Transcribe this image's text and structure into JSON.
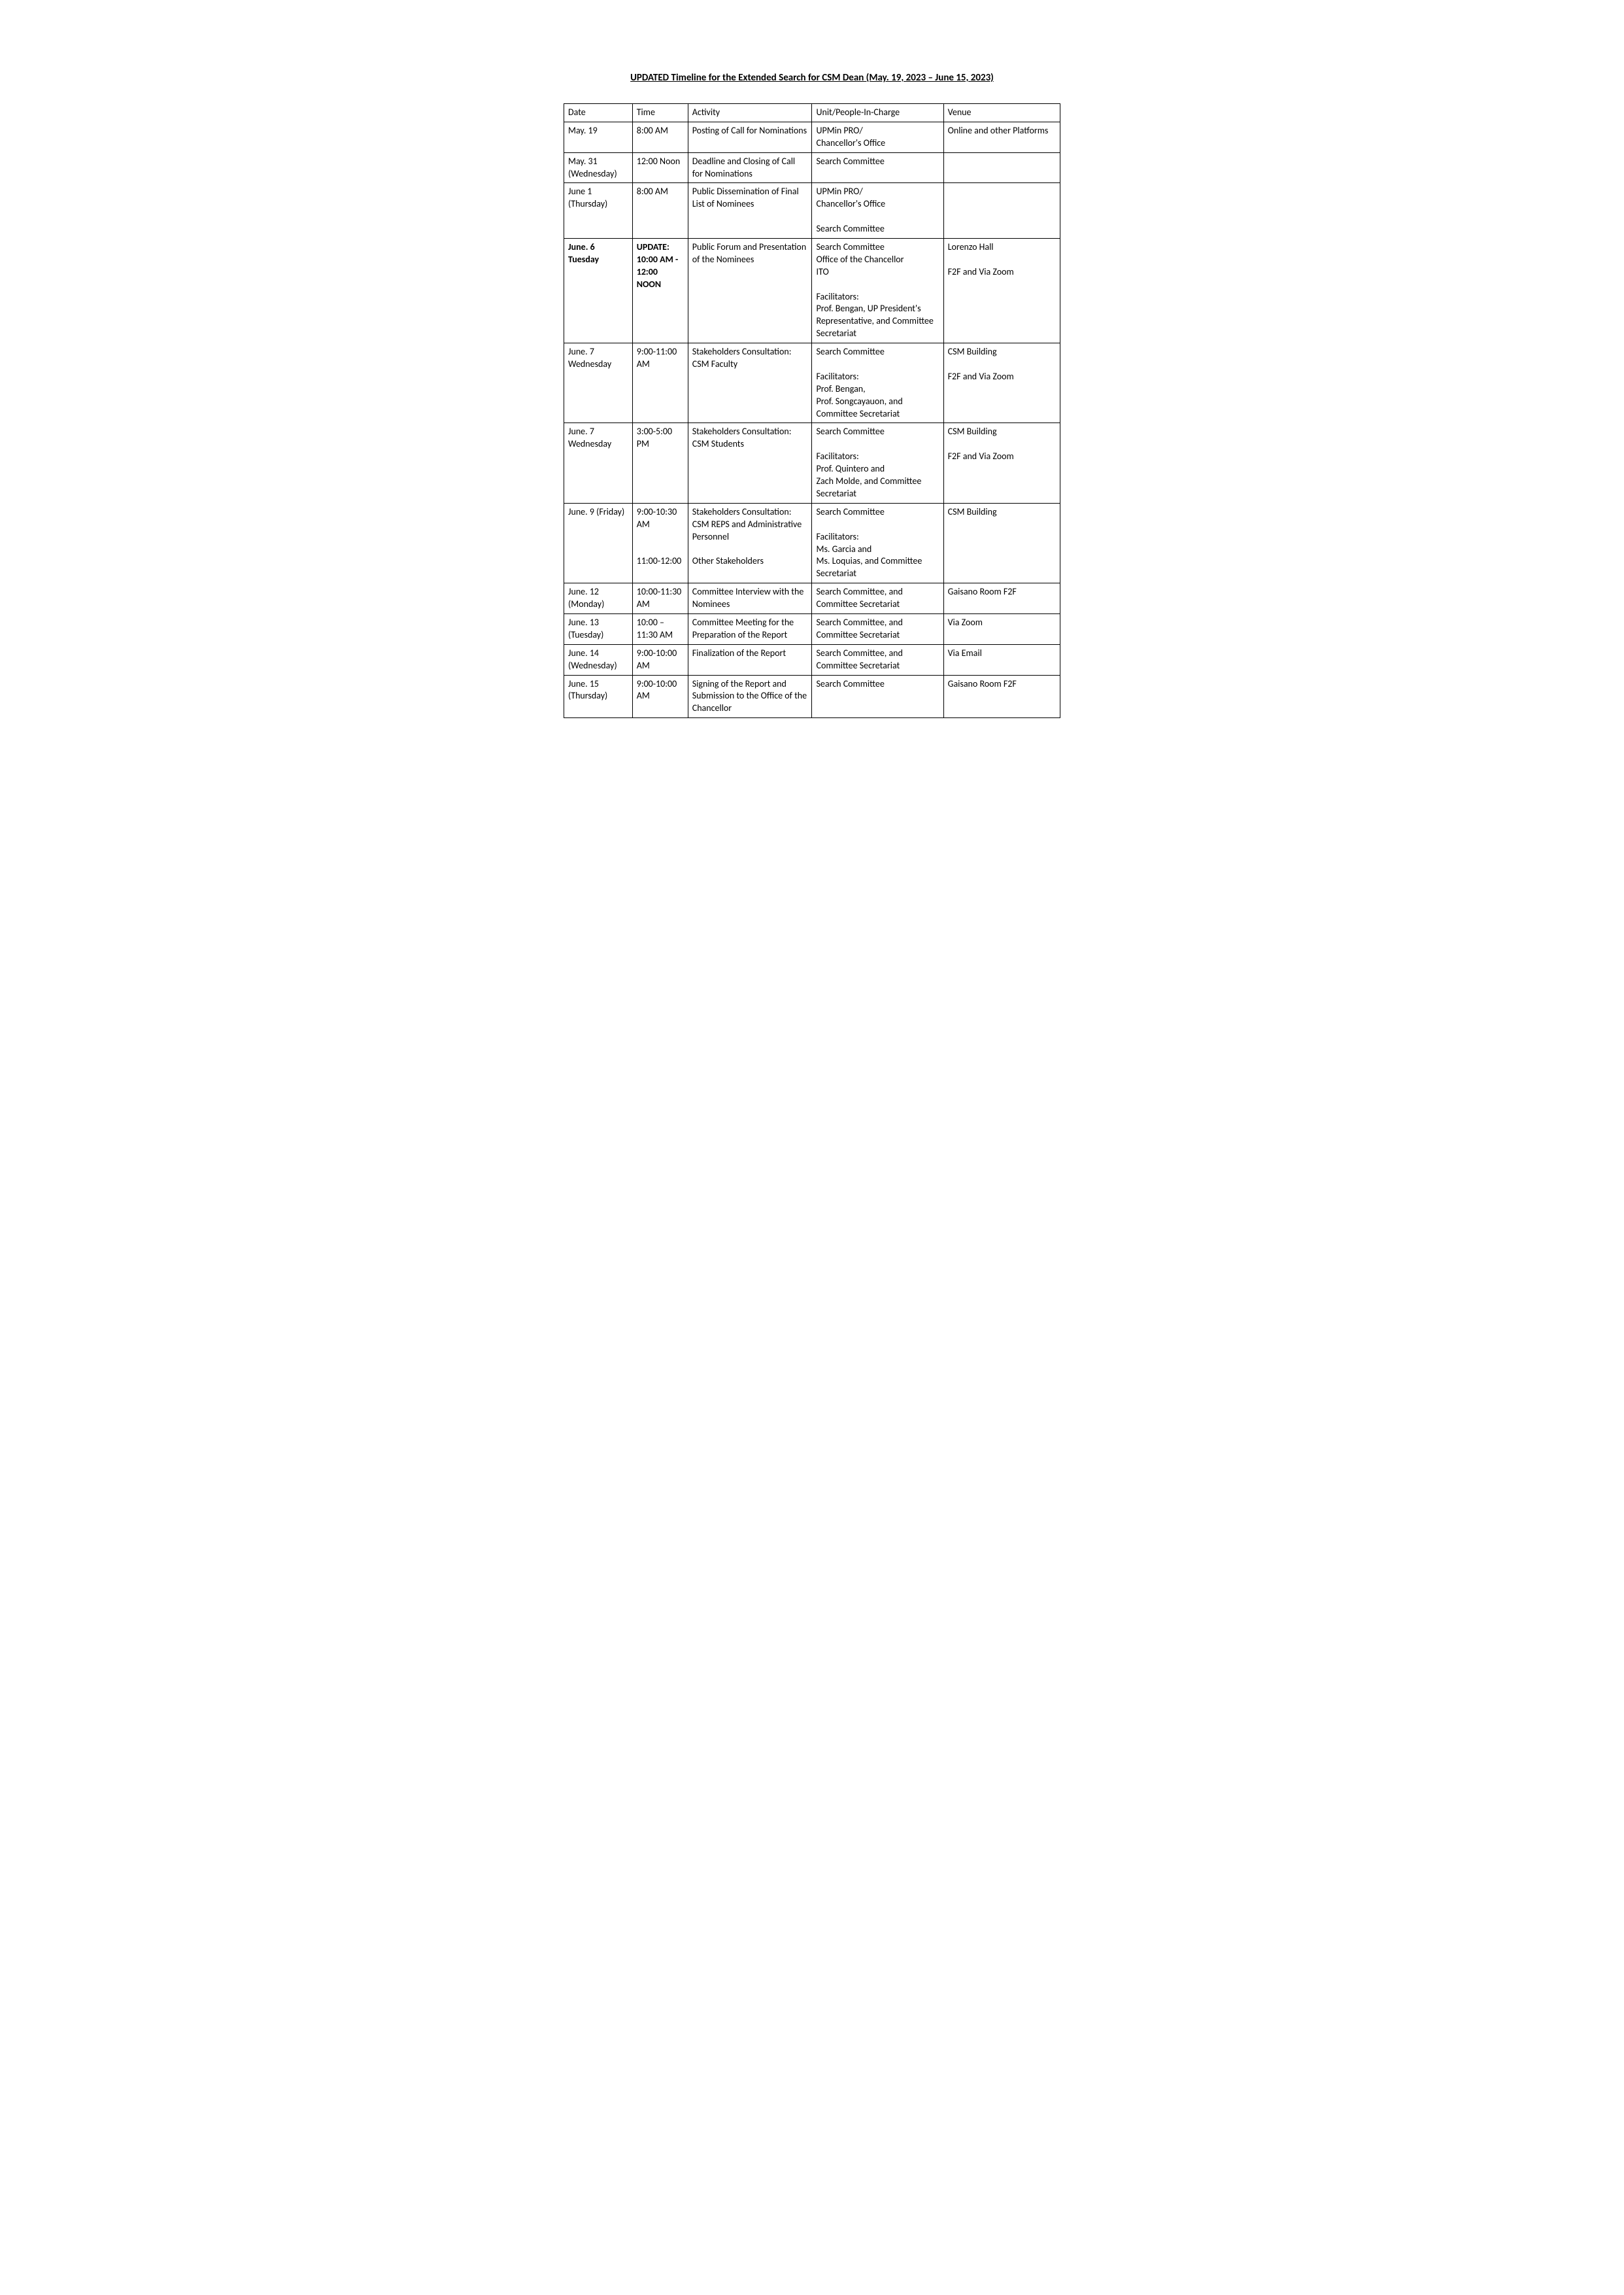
{
  "doc": {
    "title": "UPDATED Timeline for the Extended Search for CSM Dean (May. 19, 2023 – June 15, 2023)",
    "headers": {
      "date": "Date",
      "time": "Time",
      "activity": "Activity",
      "unit": "Unit/People-In-Charge",
      "venue": "Venue"
    },
    "rows": [
      {
        "date": "May. 19",
        "time": "8:00 AM",
        "activity": "Posting of Call for Nominations",
        "unit": "UPMin PRO/\nChancellor's Office",
        "venue": "Online  and other Platforms"
      },
      {
        "date": "May. 31 (Wednesday)",
        "time": "12:00 Noon",
        "activity": "Deadline and Closing of Call for Nominations",
        "unit": "Search Committee",
        "venue": ""
      },
      {
        "date": "June 1 (Thursday)",
        "time": "8:00 AM",
        "activity": "Public Dissemination of Final List of Nominees",
        "unit": "UPMin PRO/\nChancellor's Office\n\nSearch Committee",
        "venue": ""
      },
      {
        "date": "June. 6\nTuesday",
        "date_bold": true,
        "time": "UPDATE: 10:00 AM - 12:00 NOON",
        "time_bold": true,
        "activity": "Public Forum and Presentation of the Nominees",
        "unit": "Search Committee\nOffice of the Chancellor\nITO\n\nFacilitators:\nProf. Bengan, UP President's Representative, and Committee Secretariat",
        "venue": "Lorenzo Hall\n\nF2F and Via Zoom"
      },
      {
        "date": "June. 7 Wednesday",
        "time": "9:00-11:00 AM",
        "activity": "Stakeholders Consultation:\nCSM Faculty",
        "unit": "Search Committee\n\nFacilitators:\nProf. Bengan,\nProf. Songcayauon, and Committee Secretariat",
        "venue": "CSM Building\n\nF2F and Via Zoom"
      },
      {
        "date": "June. 7 Wednesday",
        "time": "3:00-5:00 PM",
        "activity": "Stakeholders Consultation:\nCSM Students",
        "unit": "Search Committee\n\nFacilitators:\nProf. Quintero and\nZach Molde, and Committee Secretariat",
        "venue": "CSM Building\n\nF2F and Via Zoom"
      },
      {
        "date": "June. 9 (Friday)",
        "time": "9:00-10:30 AM\n\n\n11:00-12:00",
        "activity": "Stakeholders Consultation:\nCSM REPS and Administrative Personnel\n\nOther Stakeholders",
        "unit": "Search Committee\n\nFacilitators:\nMs. Garcia and\nMs. Loquias, and Committee Secretariat",
        "venue": "CSM Building"
      },
      {
        "date": "June. 12 (Monday)",
        "time": "10:00-11:30 AM",
        "activity": "Committee Interview with the Nominees",
        "unit": "Search Committee, and Committee Secretariat",
        "venue": "Gaisano Room F2F"
      },
      {
        "date": "June. 13 (Tuesday)",
        "time": "10:00 – 11:30 AM",
        "activity": "Committee Meeting for the Preparation of the Report",
        "unit": "Search Committee, and Committee Secretariat",
        "venue": "Via Zoom"
      },
      {
        "date": "June. 14 (Wednesday)",
        "time": "9:00-10:00 AM",
        "activity": "Finalization of the Report",
        "unit": "Search Committee, and Committee Secretariat",
        "venue": "Via Email"
      },
      {
        "date": "June. 15 (Thursday)",
        "time": "9:00-10:00 AM",
        "activity": "Signing of the Report and Submission to the Office of the Chancellor",
        "unit": "Search Committee",
        "venue": "Gaisano Room F2F"
      }
    ]
  }
}
